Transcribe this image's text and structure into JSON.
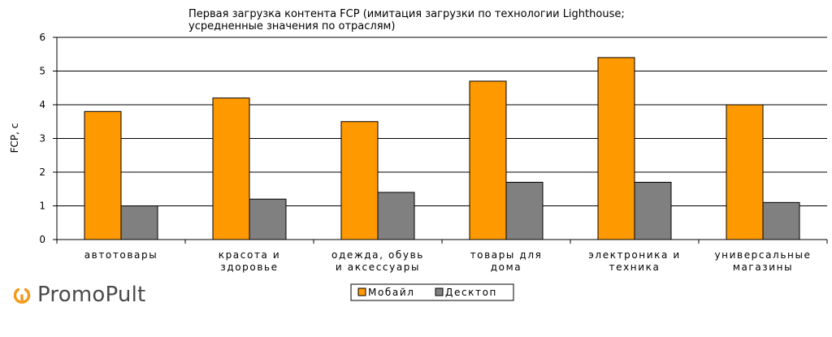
{
  "colors": {
    "mobile": "#FF9900",
    "desktop": "#808080",
    "brand_accent": "#F29A1E",
    "brand_text": "#4a4a4a"
  },
  "brand": {
    "name": "PromoPult",
    "icon": "power-ring-icon"
  },
  "chart_data": {
    "type": "bar",
    "title": [
      "Первая загрузка контента FCP (имитация загрузки по технологии Lighthouse;",
      "усредненные значения по отраслям)"
    ],
    "ylabel": "FCP, с",
    "xlabel": "",
    "ylim": [
      0,
      6
    ],
    "yticks": [
      0,
      1,
      2,
      3,
      4,
      5,
      6
    ],
    "grid": true,
    "legend": "bottom-center",
    "categories": [
      [
        "автотовары"
      ],
      [
        "красота и",
        "здоровье"
      ],
      [
        "одежда, обувь",
        "и аксессуары"
      ],
      [
        "товары для",
        "дома"
      ],
      [
        "электроника и",
        "техника"
      ],
      [
        "универсальные",
        "магазины"
      ]
    ],
    "series": [
      {
        "name": "Мобайл",
        "values": [
          3.8,
          4.2,
          3.5,
          4.7,
          5.4,
          4.0
        ]
      },
      {
        "name": "Десктоп",
        "values": [
          1.0,
          1.2,
          1.4,
          1.7,
          1.7,
          1.1
        ]
      }
    ]
  }
}
